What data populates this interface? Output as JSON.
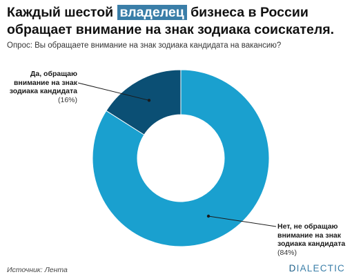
{
  "header": {
    "title_part1": "Каждый шестой ",
    "title_highlight": "владелец",
    "title_part2": " бизнеса в России обращает внимание на знак зодиака соискателя.",
    "subtitle": "Опрос: Вы обращаете внимание на знак зодиака кандидата на вакансию?"
  },
  "chart_data": {
    "type": "pie",
    "donut": true,
    "slices": [
      {
        "label": "Да, обращаю внимание на знак зодиака кандидата",
        "value": 16,
        "value_label": "(16%)",
        "color": "#0b4f74"
      },
      {
        "label": "Нет, не обращаю внимание на знак зодиака кандидата",
        "value": 84,
        "value_label": "(84%)",
        "color": "#1aa0cf"
      }
    ]
  },
  "labels": {
    "yes_line1": "Да, обращаю",
    "yes_line2": "внимание на знак",
    "yes_line3": "зодиака кандидата",
    "yes_pct": "(16%)",
    "no_line1": "Нет, не обращаю",
    "no_line2": "внимание на знак",
    "no_line3": "зодиака кандидата",
    "no_pct": "(84%)"
  },
  "footer": {
    "source": "Источник: Лента",
    "logo_first": "D",
    "logo_rest": "IALECTIC"
  }
}
